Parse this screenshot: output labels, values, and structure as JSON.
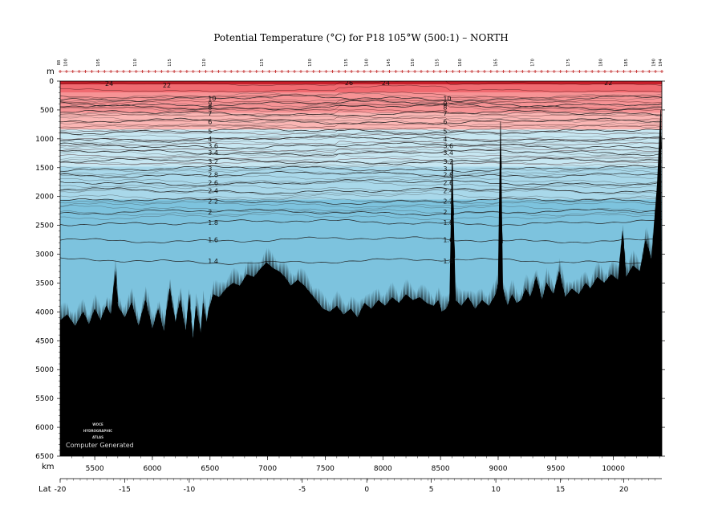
{
  "chart_data": {
    "type": "heatmap",
    "title": "Potential Temperature (°C) for P18 105°W (500:1) – NORTH",
    "ylabel": "m",
    "xlabel": "km",
    "lat_label": "Lat",
    "ylim": [
      6500,
      0
    ],
    "xlim": [
      5200,
      10420
    ],
    "y_ticks": [
      0,
      500,
      1000,
      1500,
      2000,
      2500,
      3000,
      3500,
      4000,
      4500,
      5000,
      5500,
      6000,
      6500
    ],
    "x_ticks": [
      5500,
      6000,
      6500,
      7000,
      7500,
      8000,
      8500,
      9000,
      9500,
      10000
    ],
    "lat_ticks": [
      {
        "lat": -20,
        "label": "-20",
        "km": 5200
      },
      {
        "lat": -15,
        "label": "-15",
        "km": 5760
      },
      {
        "lat": -10,
        "label": "-10",
        "km": 6320
      },
      {
        "lat": -5,
        "label": "-5",
        "km": 7300
      },
      {
        "lat": 0,
        "label": "0",
        "km": 7860
      },
      {
        "lat": 5,
        "label": "5",
        "km": 8420
      },
      {
        "lat": 10,
        "label": "10",
        "km": 8980
      },
      {
        "lat": 15,
        "label": "15",
        "km": 9540
      },
      {
        "lat": 20,
        "label": "20",
        "km": 10090
      }
    ],
    "stations": [
      {
        "label": "88",
        "km": 5200
      },
      {
        "label": "100",
        "km": 5260
      },
      {
        "label": "105",
        "km": 5540
      },
      {
        "label": "110",
        "km": 5860
      },
      {
        "label": "115",
        "km": 6160
      },
      {
        "label": "120",
        "km": 6460
      },
      {
        "label": "125",
        "km": 6960
      },
      {
        "label": "130",
        "km": 7380
      },
      {
        "label": "135",
        "km": 7690
      },
      {
        "label": "140",
        "km": 7870
      },
      {
        "label": "145",
        "km": 8060
      },
      {
        "label": "150",
        "km": 8270
      },
      {
        "label": "155",
        "km": 8480
      },
      {
        "label": "160",
        "km": 8680
      },
      {
        "label": "165",
        "km": 8990
      },
      {
        "label": "170",
        "km": 9310
      },
      {
        "label": "175",
        "km": 9620
      },
      {
        "label": "180",
        "km": 9900
      },
      {
        "label": "185",
        "km": 10120
      },
      {
        "label": "190",
        "km": 10360
      },
      {
        "label": "194",
        "km": 10420
      }
    ],
    "color_bands": [
      {
        "from": 0,
        "to": 60,
        "color": "#c81e2a"
      },
      {
        "from": 60,
        "to": 200,
        "color": "#f06a70"
      },
      {
        "from": 200,
        "to": 550,
        "color": "#f79395"
      },
      {
        "from": 550,
        "to": 840,
        "color": "#fbb6b4"
      },
      {
        "from": 840,
        "to": 1480,
        "color": "#c7e7f2"
      },
      {
        "from": 1480,
        "to": 2050,
        "color": "#a9d8ea"
      },
      {
        "from": 2050,
        "to": 6500,
        "color": "#7dc3de"
      }
    ],
    "isotherms": [
      {
        "value": "10",
        "depth": 300
      },
      {
        "value": "9",
        "depth": 390
      },
      {
        "value": "8",
        "depth": 450
      },
      {
        "value": "7",
        "depth": 560
      },
      {
        "value": "6",
        "depth": 700
      },
      {
        "value": "5",
        "depth": 870
      },
      {
        "value": "4",
        "depth": 1000
      },
      {
        "value": "3.6",
        "depth": 1120
      },
      {
        "value": "3.4",
        "depth": 1240
      },
      {
        "value": "3.2",
        "depth": 1390
      },
      {
        "value": "3",
        "depth": 1520
      },
      {
        "value": "2.8",
        "depth": 1620
      },
      {
        "value": "2.6",
        "depth": 1760
      },
      {
        "value": "2.4",
        "depth": 1900
      },
      {
        "value": "2.2",
        "depth": 2080
      },
      {
        "value": "2",
        "depth": 2270
      },
      {
        "value": "1.8",
        "depth": 2450
      },
      {
        "value": "1.6",
        "depth": 2750
      },
      {
        "value": "1.4",
        "depth": 3120
      }
    ],
    "surface_labels": [
      {
        "value": "24",
        "km": 5590,
        "depth": 40
      },
      {
        "value": "22",
        "km": 6090,
        "depth": 70
      },
      {
        "value": "26",
        "km": 7670,
        "depth": 25
      },
      {
        "value": "24",
        "km": 7990,
        "depth": 30
      },
      {
        "value": "22",
        "km": 9920,
        "depth": 25
      }
    ],
    "bottom_profile": [
      [
        5200,
        4150
      ],
      [
        5260,
        4050
      ],
      [
        5330,
        4250
      ],
      [
        5400,
        4000
      ],
      [
        5450,
        4220
      ],
      [
        5500,
        3950
      ],
      [
        5550,
        4150
      ],
      [
        5600,
        3900
      ],
      [
        5640,
        4050
      ],
      [
        5680,
        3300
      ],
      [
        5700,
        3900
      ],
      [
        5760,
        4100
      ],
      [
        5820,
        3850
      ],
      [
        5880,
        4250
      ],
      [
        5940,
        3800
      ],
      [
        6000,
        4300
      ],
      [
        6050,
        3950
      ],
      [
        6100,
        4350
      ],
      [
        6150,
        3600
      ],
      [
        6200,
        4200
      ],
      [
        6240,
        3800
      ],
      [
        6290,
        4350
      ],
      [
        6320,
        3700
      ],
      [
        6350,
        4500
      ],
      [
        6380,
        3900
      ],
      [
        6420,
        4400
      ],
      [
        6440,
        3850
      ],
      [
        6470,
        4200
      ],
      [
        6490,
        3950
      ],
      [
        6530,
        3700
      ],
      [
        6580,
        3750
      ],
      [
        6640,
        3600
      ],
      [
        6700,
        3500
      ],
      [
        6760,
        3550
      ],
      [
        6820,
        3350
      ],
      [
        6880,
        3400
      ],
      [
        6940,
        3250
      ],
      [
        6990,
        3150
      ],
      [
        7050,
        3250
      ],
      [
        7100,
        3300
      ],
      [
        7150,
        3400
      ],
      [
        7200,
        3550
      ],
      [
        7260,
        3450
      ],
      [
        7320,
        3550
      ],
      [
        7360,
        3650
      ],
      [
        7420,
        3800
      ],
      [
        7480,
        3950
      ],
      [
        7540,
        4000
      ],
      [
        7600,
        3900
      ],
      [
        7660,
        4050
      ],
      [
        7720,
        3950
      ],
      [
        7780,
        4100
      ],
      [
        7840,
        3850
      ],
      [
        7900,
        3950
      ],
      [
        7960,
        3800
      ],
      [
        8020,
        3900
      ],
      [
        8080,
        3750
      ],
      [
        8140,
        3850
      ],
      [
        8200,
        3700
      ],
      [
        8260,
        3800
      ],
      [
        8320,
        3750
      ],
      [
        8380,
        3850
      ],
      [
        8440,
        3900
      ],
      [
        8480,
        3800
      ],
      [
        8510,
        4000
      ],
      [
        8550,
        3950
      ],
      [
        8580,
        3800
      ],
      [
        8600,
        1350
      ],
      [
        8630,
        3800
      ],
      [
        8680,
        3900
      ],
      [
        8740,
        3750
      ],
      [
        8800,
        3950
      ],
      [
        8860,
        3800
      ],
      [
        8920,
        3900
      ],
      [
        8980,
        3700
      ],
      [
        9000,
        3500
      ],
      [
        9020,
        700
      ],
      [
        9040,
        3600
      ],
      [
        9080,
        3900
      ],
      [
        9120,
        3700
      ],
      [
        9160,
        3850
      ],
      [
        9200,
        3800
      ],
      [
        9240,
        3600
      ],
      [
        9280,
        3750
      ],
      [
        9330,
        3400
      ],
      [
        9380,
        3800
      ],
      [
        9420,
        3500
      ],
      [
        9480,
        3700
      ],
      [
        9530,
        3300
      ],
      [
        9580,
        3750
      ],
      [
        9640,
        3600
      ],
      [
        9700,
        3700
      ],
      [
        9760,
        3500
      ],
      [
        9800,
        3600
      ],
      [
        9860,
        3400
      ],
      [
        9920,
        3500
      ],
      [
        9980,
        3350
      ],
      [
        10040,
        3450
      ],
      [
        10080,
        2600
      ],
      [
        10110,
        3400
      ],
      [
        10170,
        3200
      ],
      [
        10230,
        3300
      ],
      [
        10280,
        2750
      ],
      [
        10330,
        3100
      ],
      [
        10380,
        1800
      ],
      [
        10410,
        500
      ],
      [
        10420,
        6500
      ]
    ]
  },
  "logo": {
    "line1": "WOCE",
    "line2": "HYDROGRAPHIC",
    "line3": "ATLAS",
    "footer": "Computer Generated"
  }
}
